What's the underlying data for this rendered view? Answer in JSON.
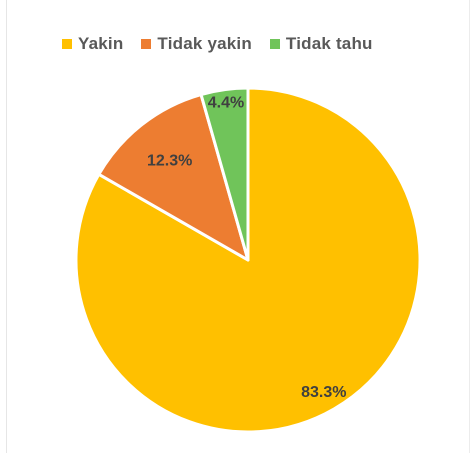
{
  "chart_data": {
    "type": "pie",
    "title": "",
    "legend_position": "top",
    "categories": [
      "Yakin",
      "Tidak yakin",
      "Tidak tahu"
    ],
    "values": [
      83.3,
      12.3,
      4.4
    ],
    "labels": [
      "83.3%",
      "12.3%",
      "4.4%"
    ],
    "colors": [
      "#FFC000",
      "#ED7D31",
      "#70C45A"
    ]
  }
}
